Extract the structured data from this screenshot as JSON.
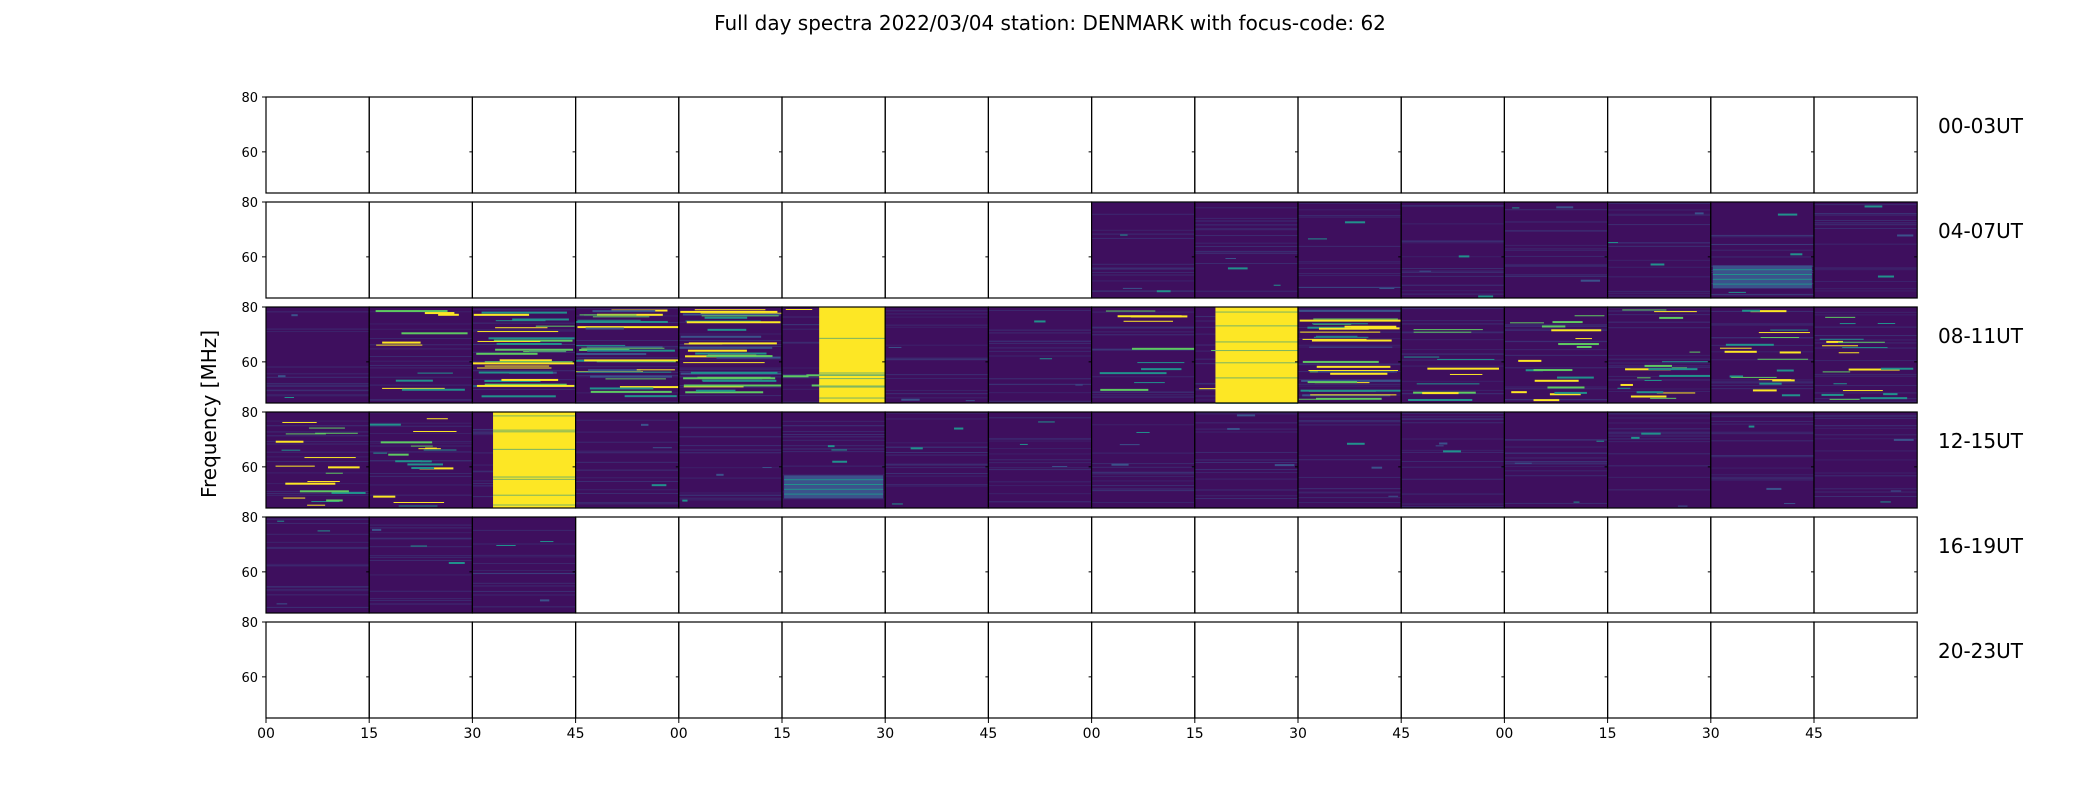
{
  "chart_data": {
    "type": "heatmap",
    "title": "Full day spectra 2022/03/04 station: DENMARK with focus-code: 62",
    "ylabel": "Frequency [MHz]",
    "xlabel": "",
    "ylim": [
      45,
      80
    ],
    "yticks": [
      60,
      80
    ],
    "xtick_labels": [
      "00",
      "15",
      "30",
      "45",
      "00",
      "15",
      "30",
      "45",
      "00",
      "15",
      "30",
      "45",
      "00",
      "15",
      "30",
      "45"
    ],
    "rows": [
      {
        "label": "00-03UT",
        "panels": [
          "empty",
          "empty",
          "empty",
          "empty",
          "empty",
          "empty",
          "empty",
          "empty",
          "empty",
          "empty",
          "empty",
          "empty",
          "empty",
          "empty",
          "empty",
          "empty"
        ]
      },
      {
        "label": "04-07UT",
        "panels": [
          "empty",
          "empty",
          "empty",
          "empty",
          "empty",
          "empty",
          "empty",
          "empty",
          "quiet",
          "quiet",
          "quiet",
          "quiet",
          "quiet",
          "quiet",
          "band-low",
          "quiet"
        ]
      },
      {
        "label": "08-11UT",
        "panels": [
          "quiet",
          "streaks",
          "busy",
          "busy",
          "busy",
          "saturated-right",
          "quiet",
          "quiet",
          "streaks",
          "saturated-center",
          "busy-left",
          "streaks",
          "noisy",
          "noisy",
          "noisy",
          "noisy"
        ]
      },
      {
        "label": "12-15UT",
        "panels": [
          "noisy",
          "noisy",
          "saturated-center",
          "quiet",
          "quiet",
          "band-low",
          "quiet",
          "quiet",
          "quiet",
          "quiet",
          "quiet",
          "quiet",
          "quiet",
          "quiet",
          "quiet",
          "quiet"
        ]
      },
      {
        "label": "16-19UT",
        "panels": [
          "quiet",
          "quiet",
          "quiet",
          "empty",
          "empty",
          "empty",
          "empty",
          "empty",
          "empty",
          "empty",
          "empty",
          "empty",
          "empty",
          "empty",
          "empty",
          "empty"
        ]
      },
      {
        "label": "20-23UT",
        "panels": [
          "empty",
          "empty",
          "empty",
          "empty",
          "empty",
          "empty",
          "empty",
          "empty",
          "empty",
          "empty",
          "empty",
          "empty",
          "empty",
          "empty",
          "empty",
          "empty"
        ]
      }
    ],
    "colormap": [
      "#440154",
      "#3b528b",
      "#21918c",
      "#5ec962",
      "#fde725"
    ],
    "colors": {
      "background": "#3e0f5e",
      "saturated": "#fde725"
    }
  }
}
